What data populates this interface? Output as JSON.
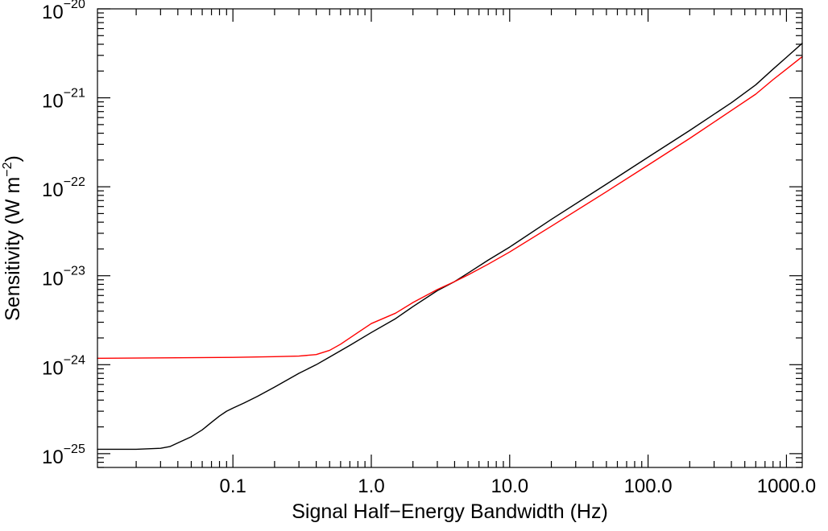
{
  "chart_data": {
    "type": "line",
    "title": "",
    "xlabel": "Signal Half−Energy Bandwidth (Hz)",
    "ylabel": "Sensitivity (W m",
    "ylabel_superscript": "−2",
    "ylabel_close": ")",
    "xscale": "log",
    "yscale": "log",
    "xlim": [
      0.0105,
      1300
    ],
    "ylim": [
      7e-26,
      1e-20
    ],
    "grid": false,
    "legend": "none",
    "x_ticks": [
      {
        "value": 0.1,
        "label": "0.1"
      },
      {
        "value": 1,
        "label": "1.0"
      },
      {
        "value": 10,
        "label": "10.0"
      },
      {
        "value": 100,
        "label": "100.0"
      },
      {
        "value": 1000,
        "label": "1000.0"
      }
    ],
    "y_ticks": [
      {
        "value": 1e-25,
        "base": "10",
        "exponent": "−25"
      },
      {
        "value": 1e-24,
        "base": "10",
        "exponent": "−24"
      },
      {
        "value": 1e-23,
        "base": "10",
        "exponent": "−23"
      },
      {
        "value": 1e-22,
        "base": "10",
        "exponent": "−22"
      },
      {
        "value": 1e-21,
        "base": "10",
        "exponent": "−21"
      },
      {
        "value": 1e-20,
        "base": "10",
        "exponent": "−20"
      }
    ],
    "series": [
      {
        "color": "#000000",
        "points": [
          [
            0.0105,
            1.12e-25
          ],
          [
            0.02,
            1.12e-25
          ],
          [
            0.03,
            1.15e-25
          ],
          [
            0.035,
            1.2e-25
          ],
          [
            0.04,
            1.32e-25
          ],
          [
            0.05,
            1.55e-25
          ],
          [
            0.06,
            1.85e-25
          ],
          [
            0.07,
            2.25e-25
          ],
          [
            0.08,
            2.65e-25
          ],
          [
            0.09,
            3e-25
          ],
          [
            0.1,
            3.25e-25
          ],
          [
            0.12,
            3.7e-25
          ],
          [
            0.15,
            4.4e-25
          ],
          [
            0.2,
            5.6e-25
          ],
          [
            0.3,
            8e-25
          ],
          [
            0.4,
            1e-24
          ],
          [
            0.5,
            1.22e-24
          ],
          [
            0.7,
            1.65e-24
          ],
          [
            1.0,
            2.3e-24
          ],
          [
            1.5,
            3.3e-24
          ],
          [
            2.0,
            4.5e-24
          ],
          [
            3.0,
            6.8e-24
          ],
          [
            4.0,
            8.6e-24
          ],
          [
            5.0,
            1.07e-23
          ],
          [
            7.0,
            1.5e-23
          ],
          [
            10,
            2.1e-23
          ],
          [
            20,
            4.3e-23
          ],
          [
            50,
            1.07e-22
          ],
          [
            100,
            2.15e-22
          ],
          [
            200,
            4.3e-22
          ],
          [
            400,
            8.8e-22
          ],
          [
            600,
            1.4e-21
          ],
          [
            800,
            2.1e-21
          ],
          [
            1000,
            2.85e-21
          ],
          [
            1300,
            4.1e-21
          ]
        ]
      },
      {
        "color": "#ff0000",
        "points": [
          [
            0.0105,
            1.18e-24
          ],
          [
            0.05,
            1.2e-24
          ],
          [
            0.1,
            1.21e-24
          ],
          [
            0.2,
            1.23e-24
          ],
          [
            0.3,
            1.25e-24
          ],
          [
            0.4,
            1.3e-24
          ],
          [
            0.5,
            1.45e-24
          ],
          [
            0.6,
            1.7e-24
          ],
          [
            0.8,
            2.3e-24
          ],
          [
            1.0,
            2.9e-24
          ],
          [
            1.5,
            3.8e-24
          ],
          [
            2.0,
            5e-24
          ],
          [
            3.0,
            7e-24
          ],
          [
            4.0,
            8.6e-24
          ],
          [
            5.0,
            1.02e-23
          ],
          [
            7.0,
            1.35e-23
          ],
          [
            10,
            1.85e-23
          ],
          [
            20,
            3.6e-23
          ],
          [
            50,
            8.8e-23
          ],
          [
            100,
            1.75e-22
          ],
          [
            200,
            3.5e-22
          ],
          [
            400,
            7.2e-22
          ],
          [
            600,
            1.1e-21
          ],
          [
            800,
            1.6e-21
          ],
          [
            1000,
            2.1e-21
          ],
          [
            1300,
            2.9e-21
          ]
        ]
      }
    ]
  }
}
